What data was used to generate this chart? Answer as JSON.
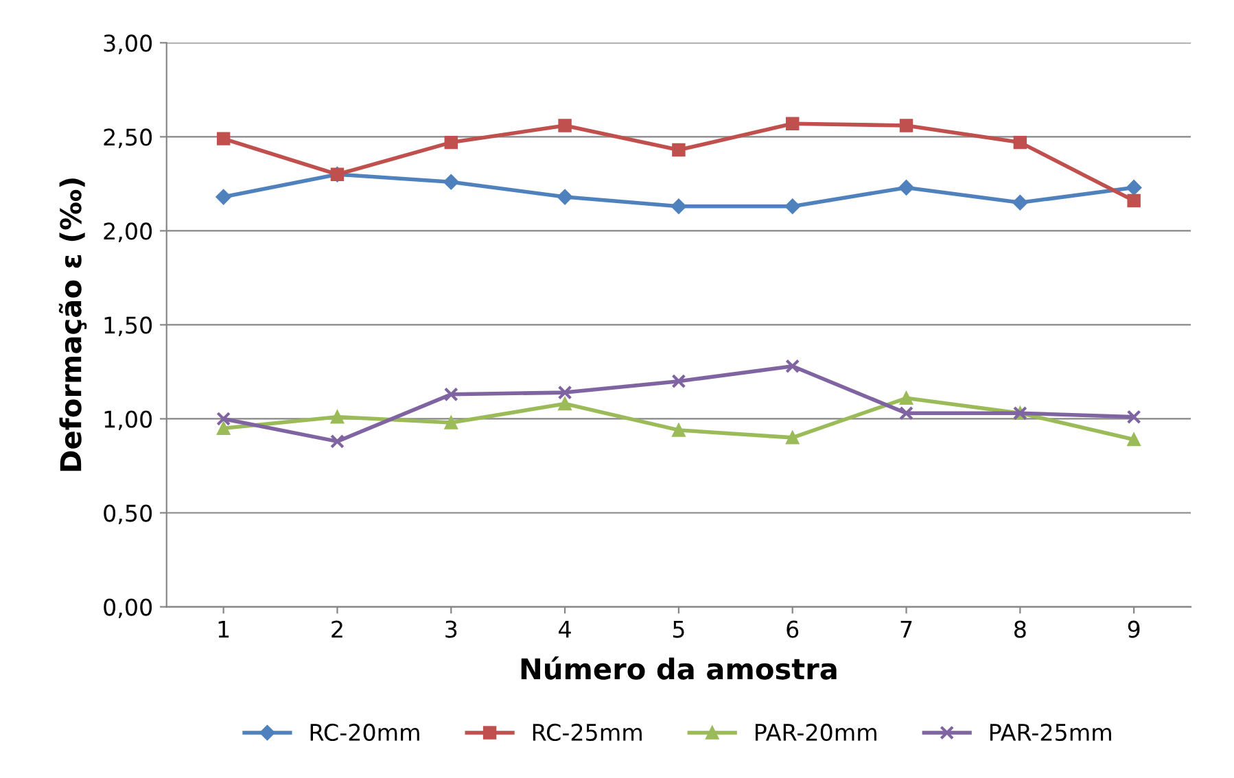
{
  "chart_data": {
    "type": "line",
    "xlabel": "Número da amostra",
    "ylabel": "Deformação ε (‰)",
    "categories": [
      "1",
      "2",
      "3",
      "4",
      "5",
      "6",
      "7",
      "8",
      "9"
    ],
    "series": [
      {
        "name": "RC-20mm",
        "color": "#4f81bd",
        "marker": "diamond",
        "values": [
          2.18,
          2.3,
          2.26,
          2.18,
          2.13,
          2.13,
          2.23,
          2.15,
          2.23
        ]
      },
      {
        "name": "RC-25mm",
        "color": "#c0504d",
        "marker": "square",
        "values": [
          2.49,
          2.3,
          2.47,
          2.56,
          2.43,
          2.57,
          2.56,
          2.47,
          2.16
        ]
      },
      {
        "name": "PAR-20mm",
        "color": "#9bbb59",
        "marker": "triangle",
        "values": [
          0.95,
          1.01,
          0.98,
          1.08,
          0.94,
          0.9,
          1.11,
          1.03,
          0.89
        ]
      },
      {
        "name": "PAR-25mm",
        "color": "#8064a2",
        "marker": "cross",
        "values": [
          1.0,
          0.88,
          1.13,
          1.14,
          1.2,
          1.28,
          1.03,
          1.03,
          1.01
        ]
      }
    ],
    "ylim": [
      0,
      3
    ],
    "yticks": [
      {
        "value": 0,
        "label": "0,00"
      },
      {
        "value": 0.5,
        "label": "0,50"
      },
      {
        "value": 1,
        "label": "1,00"
      },
      {
        "value": 1.5,
        "label": "1,50"
      },
      {
        "value": 2,
        "label": "2,00"
      },
      {
        "value": 2.5,
        "label": "2,50"
      },
      {
        "value": 3,
        "label": "3,00"
      }
    ],
    "grid": "y",
    "legend": "bottom",
    "line_style": "solid"
  }
}
